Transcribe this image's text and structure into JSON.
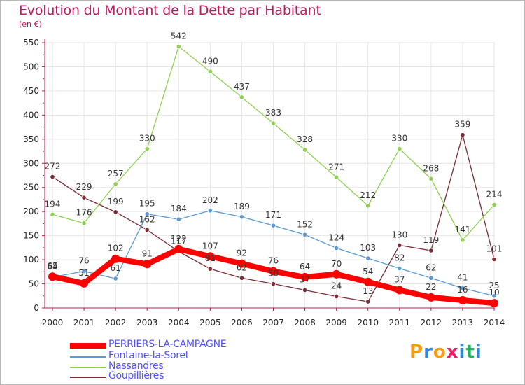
{
  "header": {
    "title": "Evolution du Montant de la Dette par Habitant",
    "subtitle": "(en €)"
  },
  "logo": {
    "text": "Proxiti",
    "colors": [
      "#f39c12",
      "#2e86de",
      "#f39c12",
      "#e91e63",
      "#2e86de",
      "#27ae60",
      "#2e86de"
    ]
  },
  "colors": {
    "title": "#c2185b",
    "axis": "#c2185b",
    "grid": "#e6e6e6"
  },
  "chart_data": {
    "type": "line",
    "title": "Evolution du Montant de la Dette par Habitant",
    "subtitle": "(en €)",
    "xlabel": "",
    "ylabel": "",
    "x": [
      "2000",
      "2001",
      "2002",
      "2003",
      "2004",
      "2005",
      "2006",
      "2007",
      "2008",
      "2009",
      "2010",
      "2011",
      "2012",
      "2013",
      "2014"
    ],
    "ylim": [
      0,
      550
    ],
    "yticks": [
      0,
      50,
      100,
      150,
      200,
      250,
      300,
      350,
      400,
      450,
      500,
      550
    ],
    "grid": true,
    "legend_position": "bottom-left",
    "series": [
      {
        "name": "PERRIERS-LA-CAMPAGNE",
        "color": "#ff0000",
        "legend_color": "#5050ff",
        "width": "thick",
        "values": [
          65,
          51,
          102,
          91,
          122,
          107,
          92,
          76,
          64,
          70,
          54,
          37,
          22,
          16,
          10
        ]
      },
      {
        "name": "Fontaine-la-Soret",
        "color": "#5b9bd5",
        "legend_color": "#5050ff",
        "width": "thin",
        "values": [
          64,
          76,
          61,
          195,
          184,
          202,
          189,
          171,
          152,
          124,
          103,
          82,
          62,
          41,
          25
        ]
      },
      {
        "name": "Nassandres",
        "color": "#8fd14f",
        "legend_color": "#5050ff",
        "width": "thin",
        "values": [
          194,
          176,
          257,
          330,
          542,
          490,
          437,
          383,
          328,
          271,
          212,
          330,
          268,
          141,
          214
        ]
      },
      {
        "name": "Goupillières",
        "color": "#7b2b33",
        "legend_color": "#5050ff",
        "width": "thin",
        "values": [
          272,
          229,
          199,
          162,
          117,
          81,
          62,
          50,
          37,
          24,
          13,
          130,
          119,
          359,
          101
        ]
      }
    ],
    "data_labels": {
      "PERRIERS-LA-CAMPAGNE": [
        "65",
        "51",
        "102",
        "91",
        "122",
        "107",
        "92",
        "76",
        "64",
        "70",
        "54",
        "37",
        "22",
        "16",
        "10"
      ],
      "Fontaine-la-Soret": [
        "64",
        "76",
        "61",
        "195",
        "184",
        "202",
        "189",
        "171",
        "152",
        "124",
        "103",
        "82",
        "62",
        "41",
        "25"
      ],
      "Nassandres": [
        "194",
        "176",
        "257",
        "330",
        "542",
        "490",
        "437",
        "383",
        "328",
        "271",
        "212",
        "330",
        "268",
        "141",
        "214"
      ],
      "Goupillières": [
        "272",
        "229",
        "199",
        "162",
        "117",
        "81",
        "62",
        "50",
        "37",
        "24",
        "13",
        "130",
        "119",
        "359",
        "101"
      ]
    }
  }
}
